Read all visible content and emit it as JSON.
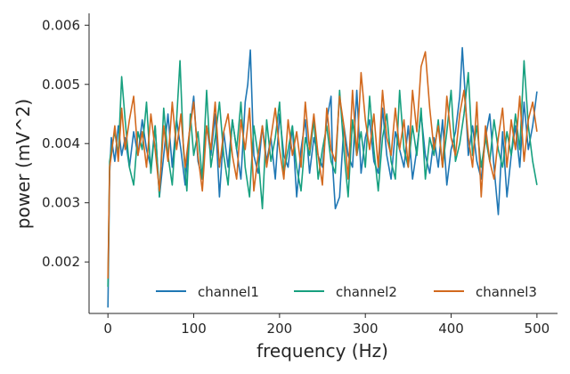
{
  "chart_data": {
    "type": "line",
    "xlabel": "frequency (Hz)",
    "ylabel": "power (mV^2)",
    "xlim": [
      -22,
      524
    ],
    "ylim": [
      0.00113,
      0.0062
    ],
    "xticks": [
      0,
      100,
      200,
      300,
      400,
      500
    ],
    "yticks": [
      0.002,
      0.003,
      0.004,
      0.005,
      0.006
    ],
    "xtick_labels": [
      "0",
      "100",
      "200",
      "300",
      "400",
      "500"
    ],
    "ytick_labels": [
      "0.002",
      "0.003",
      "0.004",
      "0.005",
      "0.006"
    ],
    "grid": false,
    "legend_position": "lower-right",
    "series": [
      {
        "name": "channel1",
        "color": "#1f77b4",
        "x": [
          0,
          2,
          4,
          8,
          12,
          16,
          20,
          25,
          30,
          35,
          40,
          45,
          50,
          55,
          60,
          65,
          70,
          75,
          80,
          85,
          90,
          95,
          100,
          105,
          110,
          115,
          120,
          125,
          130,
          135,
          140,
          145,
          150,
          155,
          160,
          163,
          166,
          170,
          175,
          180,
          185,
          190,
          195,
          200,
          205,
          210,
          215,
          220,
          225,
          230,
          235,
          240,
          245,
          250,
          255,
          260,
          262,
          265,
          270,
          275,
          280,
          285,
          290,
          295,
          300,
          305,
          310,
          315,
          320,
          325,
          330,
          335,
          340,
          345,
          350,
          355,
          360,
          365,
          370,
          375,
          380,
          385,
          390,
          395,
          400,
          405,
          410,
          413,
          416,
          420,
          425,
          430,
          435,
          440,
          445,
          450,
          455,
          460,
          465,
          470,
          475,
          480,
          485,
          490,
          495,
          500
        ],
        "y": [
          0.00123,
          0.0035,
          0.0041,
          0.0037,
          0.0043,
          0.0038,
          0.0041,
          0.0036,
          0.0042,
          0.0038,
          0.0044,
          0.0039,
          0.0036,
          0.0043,
          0.0031,
          0.0038,
          0.0045,
          0.0036,
          0.0044,
          0.0039,
          0.0033,
          0.0042,
          0.0048,
          0.0037,
          0.0034,
          0.0043,
          0.0038,
          0.0045,
          0.0031,
          0.0042,
          0.0036,
          0.0044,
          0.0039,
          0.0034,
          0.0047,
          0.005,
          0.00558,
          0.0038,
          0.0035,
          0.0043,
          0.0037,
          0.0041,
          0.0034,
          0.0045,
          0.0038,
          0.0036,
          0.0043,
          0.0031,
          0.0039,
          0.0044,
          0.0035,
          0.0041,
          0.0038,
          0.0036,
          0.0044,
          0.0048,
          0.0036,
          0.0029,
          0.0031,
          0.0043,
          0.0038,
          0.0036,
          0.0049,
          0.0035,
          0.0041,
          0.0044,
          0.0037,
          0.0035,
          0.0046,
          0.0038,
          0.0034,
          0.0042,
          0.0039,
          0.0036,
          0.0043,
          0.0034,
          0.0039,
          0.0045,
          0.0038,
          0.0035,
          0.0041,
          0.0036,
          0.0044,
          0.0033,
          0.0039,
          0.0042,
          0.0048,
          0.00562,
          0.0049,
          0.0038,
          0.0043,
          0.0037,
          0.0034,
          0.0041,
          0.0045,
          0.0036,
          0.0028,
          0.0042,
          0.0031,
          0.0038,
          0.0043,
          0.0036,
          0.0047,
          0.0039,
          0.0043,
          0.00488
        ]
      },
      {
        "name": "channel2",
        "color": "#17a07f",
        "x": [
          0,
          2,
          4,
          8,
          12,
          16,
          20,
          25,
          30,
          35,
          40,
          45,
          50,
          55,
          60,
          65,
          70,
          75,
          80,
          84,
          88,
          92,
          96,
          100,
          105,
          110,
          115,
          120,
          125,
          130,
          135,
          140,
          145,
          150,
          155,
          160,
          165,
          170,
          175,
          180,
          185,
          190,
          195,
          200,
          205,
          210,
          215,
          220,
          225,
          230,
          235,
          240,
          245,
          250,
          255,
          260,
          265,
          270,
          275,
          280,
          285,
          290,
          295,
          300,
          305,
          310,
          315,
          320,
          325,
          330,
          335,
          340,
          345,
          350,
          355,
          360,
          365,
          370,
          375,
          380,
          385,
          390,
          395,
          400,
          405,
          410,
          415,
          420,
          425,
          430,
          435,
          440,
          445,
          450,
          455,
          460,
          465,
          470,
          475,
          480,
          485,
          490,
          495,
          500
        ],
        "y": [
          0.00158,
          0.0037,
          0.0039,
          0.0042,
          0.0038,
          0.00513,
          0.0044,
          0.0036,
          0.0033,
          0.0042,
          0.0039,
          0.0047,
          0.0035,
          0.0043,
          0.0031,
          0.0046,
          0.0038,
          0.0033,
          0.0044,
          0.0054,
          0.0039,
          0.0032,
          0.0045,
          0.0038,
          0.0042,
          0.0034,
          0.0049,
          0.0036,
          0.0041,
          0.0047,
          0.0038,
          0.0033,
          0.0044,
          0.0039,
          0.0047,
          0.0036,
          0.0031,
          0.0043,
          0.0038,
          0.0029,
          0.0044,
          0.0037,
          0.0041,
          0.0047,
          0.0035,
          0.0039,
          0.0043,
          0.0036,
          0.0032,
          0.0041,
          0.0038,
          0.0044,
          0.0034,
          0.0039,
          0.0043,
          0.0037,
          0.0035,
          0.0049,
          0.0039,
          0.0031,
          0.0044,
          0.0038,
          0.0042,
          0.0036,
          0.0048,
          0.0039,
          0.0032,
          0.0041,
          0.0045,
          0.0037,
          0.0034,
          0.0049,
          0.0039,
          0.0036,
          0.0043,
          0.0038,
          0.0046,
          0.0034,
          0.0041,
          0.0038,
          0.0044,
          0.0036,
          0.0042,
          0.0049,
          0.0037,
          0.004,
          0.0045,
          0.0052,
          0.0038,
          0.0043,
          0.0036,
          0.0041,
          0.0037,
          0.0044,
          0.0039,
          0.0036,
          0.0042,
          0.0038,
          0.0045,
          0.0039,
          0.0054,
          0.0043,
          0.0037,
          0.0033
        ]
      },
      {
        "name": "channel3",
        "color": "#d2691e",
        "x": [
          0,
          2,
          4,
          8,
          12,
          16,
          20,
          25,
          30,
          35,
          40,
          45,
          50,
          55,
          60,
          65,
          70,
          75,
          80,
          85,
          90,
          95,
          100,
          105,
          110,
          115,
          120,
          125,
          130,
          135,
          140,
          145,
          150,
          155,
          160,
          165,
          170,
          175,
          180,
          185,
          190,
          195,
          200,
          205,
          210,
          215,
          220,
          225,
          230,
          235,
          240,
          245,
          250,
          255,
          260,
          265,
          270,
          275,
          280,
          285,
          290,
          295,
          300,
          305,
          310,
          315,
          320,
          325,
          330,
          335,
          340,
          345,
          350,
          355,
          360,
          365,
          370,
          375,
          380,
          385,
          390,
          395,
          400,
          405,
          410,
          415,
          420,
          425,
          430,
          435,
          440,
          445,
          450,
          455,
          460,
          465,
          470,
          475,
          480,
          485,
          490,
          495,
          500
        ],
        "y": [
          0.00172,
          0.0036,
          0.0038,
          0.0043,
          0.0037,
          0.0046,
          0.0039,
          0.0044,
          0.0048,
          0.0038,
          0.0042,
          0.0036,
          0.0045,
          0.0039,
          0.0032,
          0.0043,
          0.0037,
          0.0047,
          0.0039,
          0.0045,
          0.0036,
          0.0042,
          0.0047,
          0.0038,
          0.0032,
          0.0043,
          0.0039,
          0.0047,
          0.0036,
          0.0042,
          0.0045,
          0.0038,
          0.0034,
          0.0044,
          0.0039,
          0.0046,
          0.0032,
          0.0038,
          0.0043,
          0.0036,
          0.0041,
          0.0046,
          0.0039,
          0.0034,
          0.0044,
          0.0038,
          0.0042,
          0.0036,
          0.0047,
          0.0039,
          0.0045,
          0.0038,
          0.0033,
          0.0046,
          0.0039,
          0.0037,
          0.0048,
          0.0043,
          0.0034,
          0.0049,
          0.0038,
          0.0052,
          0.0044,
          0.0039,
          0.0045,
          0.0036,
          0.0049,
          0.0041,
          0.0038,
          0.0046,
          0.0039,
          0.0044,
          0.0036,
          0.0049,
          0.0042,
          0.0053,
          0.00555,
          0.0046,
          0.0039,
          0.0043,
          0.0036,
          0.0048,
          0.0041,
          0.0038,
          0.0045,
          0.0049,
          0.0041,
          0.0036,
          0.0047,
          0.0031,
          0.0043,
          0.0037,
          0.0034,
          0.0041,
          0.0046,
          0.0036,
          0.0044,
          0.0039,
          0.0048,
          0.0037,
          0.0044,
          0.0047,
          0.0042
        ]
      }
    ]
  }
}
